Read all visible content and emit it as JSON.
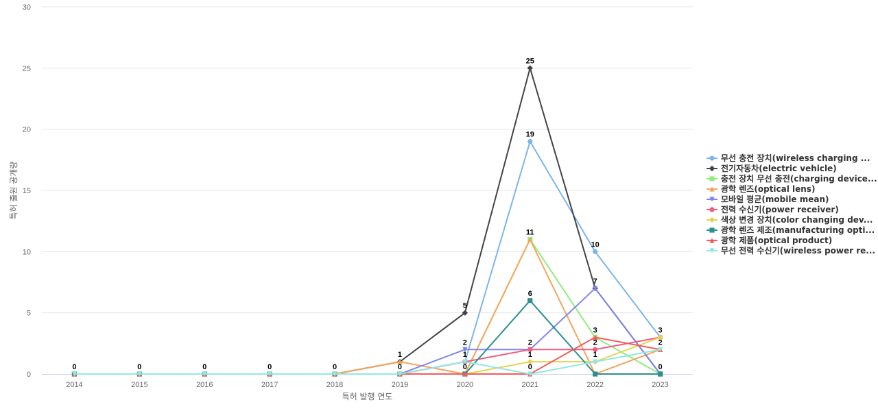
{
  "chart_data": {
    "type": "line",
    "xlabel": "특허 발행 연도",
    "ylabel": "특허 출원 공개량",
    "ylim": [
      0,
      30
    ],
    "yticks": [
      0,
      5,
      10,
      15,
      20,
      25,
      30
    ],
    "categories": [
      "2014",
      "2015",
      "2016",
      "2017",
      "2018",
      "2019",
      "2020",
      "2021",
      "2022",
      "2023"
    ],
    "grid": "horizontal",
    "legend_position": "right",
    "series": [
      {
        "name": "무선 충전 장치(wireless charging ...",
        "color": "#7cb5ec",
        "marker": "circle",
        "values": [
          0,
          0,
          0,
          0,
          0,
          0,
          1,
          19,
          10,
          3
        ],
        "labels": [
          null,
          null,
          null,
          null,
          null,
          null,
          null,
          19,
          10,
          null
        ]
      },
      {
        "name": "전기자동차(electric vehicle)",
        "color": "#434348",
        "marker": "diamond",
        "values": [
          0,
          0,
          0,
          0,
          0,
          1,
          5,
          25,
          7,
          0
        ],
        "labels": [
          null,
          null,
          null,
          null,
          null,
          1,
          5,
          25,
          7,
          null
        ]
      },
      {
        "name": "충전 장치 무선 충전(charging device...",
        "color": "#90ed7d",
        "marker": "square",
        "values": [
          0,
          0,
          0,
          0,
          0,
          0,
          0,
          11,
          3,
          0
        ],
        "labels": [
          null,
          null,
          null,
          null,
          null,
          null,
          null,
          11,
          3,
          null
        ]
      },
      {
        "name": "광학 렌즈(optical lens)",
        "color": "#f7a35c",
        "marker": "triangle",
        "values": [
          0,
          0,
          0,
          0,
          0,
          1,
          0,
          11,
          0,
          2
        ],
        "labels": [
          null,
          null,
          null,
          null,
          null,
          null,
          null,
          null,
          null,
          null
        ]
      },
      {
        "name": "모바일 평균(mobile mean)",
        "color": "#8085e9",
        "marker": "triangle-down",
        "values": [
          0,
          0,
          0,
          0,
          0,
          0,
          2,
          2,
          7,
          0
        ],
        "labels": [
          null,
          null,
          null,
          null,
          null,
          null,
          2,
          2,
          null,
          null
        ]
      },
      {
        "name": "전력 수신기(power receiver)",
        "color": "#f15c80",
        "marker": "circle",
        "values": [
          0,
          0,
          0,
          0,
          0,
          0,
          1,
          2,
          2,
          3
        ],
        "labels": [
          null,
          null,
          null,
          null,
          null,
          null,
          1,
          null,
          2,
          3
        ]
      },
      {
        "name": "색상 변경 장치(color changing dev...",
        "color": "#e4d354",
        "marker": "diamond",
        "values": [
          0,
          0,
          0,
          0,
          0,
          0,
          0,
          1,
          1,
          3
        ],
        "labels": [
          null,
          null,
          null,
          null,
          null,
          null,
          null,
          1,
          1,
          null
        ]
      },
      {
        "name": "광학 렌즈 제조(manufacturing opti...",
        "color": "#2b908f",
        "marker": "square",
        "values": [
          0,
          0,
          0,
          0,
          0,
          0,
          0,
          6,
          0,
          0
        ],
        "labels": [
          null,
          null,
          null,
          null,
          null,
          null,
          null,
          6,
          null,
          0
        ]
      },
      {
        "name": "광학 제품(optical product)",
        "color": "#f45b5b",
        "marker": "triangle",
        "values": [
          0,
          0,
          0,
          0,
          0,
          0,
          0,
          0,
          3,
          2
        ],
        "labels": [
          0,
          0,
          0,
          0,
          0,
          0,
          0,
          0,
          null,
          2
        ]
      },
      {
        "name": "무선 전력 수신기(wireless power re...",
        "color": "#91e8e1",
        "marker": "triangle-down",
        "values": [
          0,
          0,
          0,
          0,
          0,
          0,
          1,
          0,
          1,
          2
        ],
        "labels": [
          null,
          null,
          null,
          null,
          null,
          null,
          null,
          null,
          null,
          null
        ]
      }
    ]
  }
}
